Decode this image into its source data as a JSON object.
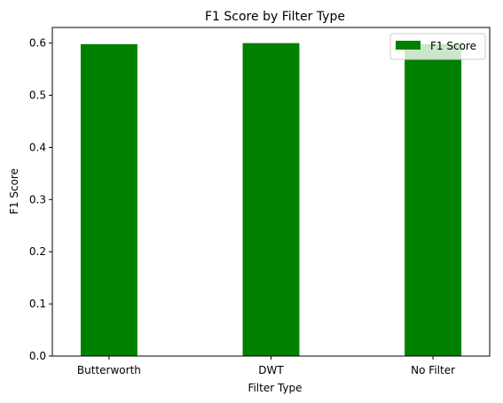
{
  "chart_data": {
    "type": "bar",
    "title": "F1 Score by Filter Type",
    "xlabel": "Filter Type",
    "ylabel": "F1 Score",
    "categories": [
      "Butterworth",
      "DWT",
      "No Filter"
    ],
    "series": [
      {
        "name": "F1 Score",
        "values": [
          0.598,
          0.6,
          0.598
        ],
        "color": "#008000"
      }
    ],
    "ylim": [
      0,
      0.63
    ],
    "yticks": [
      0.0,
      0.1,
      0.2,
      0.3,
      0.4,
      0.5,
      0.6
    ],
    "ytick_labels": [
      "0.0",
      "0.1",
      "0.2",
      "0.3",
      "0.4",
      "0.5",
      "0.6"
    ],
    "grid": false,
    "legend": {
      "position": "top-right",
      "entries": [
        "F1 Score"
      ]
    }
  }
}
